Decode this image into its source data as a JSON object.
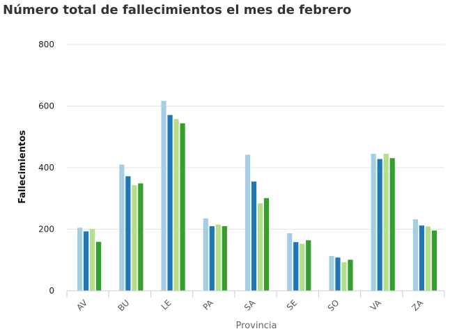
{
  "chart_data": {
    "type": "bar",
    "title": "Número total de fallecimientos el mes de febrero",
    "xlabel": "Provincia",
    "ylabel": "Fallecimientos",
    "ylim": [
      0,
      800
    ],
    "yticks": [
      0,
      200,
      400,
      600,
      800
    ],
    "grid": true,
    "categories": [
      "AV",
      "BU",
      "LE",
      "PA",
      "SA",
      "SE",
      "SO",
      "VA",
      "ZA"
    ],
    "series": [
      {
        "color": "#a6cee3",
        "values": [
          205,
          410,
          617,
          235,
          442,
          187,
          113,
          445,
          232
        ]
      },
      {
        "color": "#1f78b4",
        "values": [
          193,
          372,
          571,
          210,
          355,
          158,
          108,
          428,
          212
        ]
      },
      {
        "color": "#b2df8a",
        "values": [
          201,
          343,
          558,
          215,
          284,
          153,
          93,
          445,
          209
        ]
      },
      {
        "color": "#33a02c",
        "values": [
          159,
          349,
          544,
          210,
          301,
          164,
          101,
          431,
          196
        ]
      }
    ]
  }
}
